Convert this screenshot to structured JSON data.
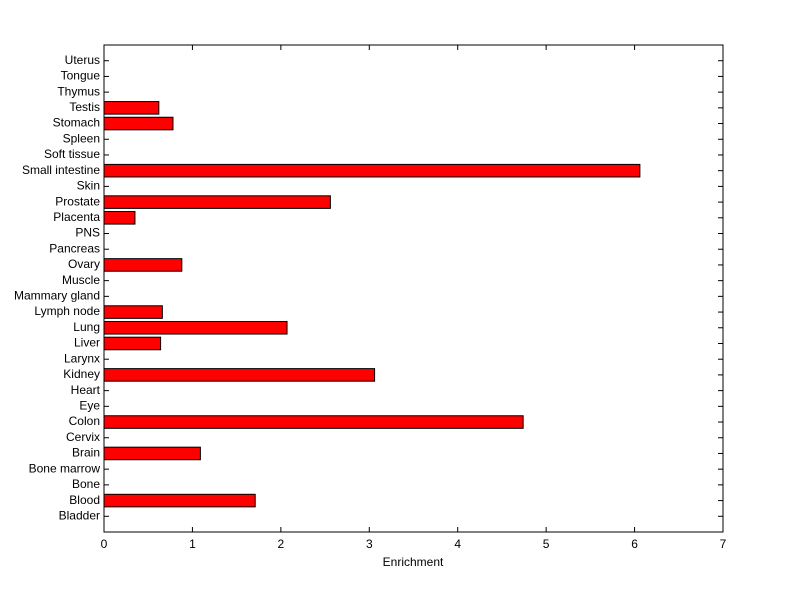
{
  "chart_data": {
    "type": "barh",
    "xlabel": "Enrichment",
    "categories": [
      "Bladder",
      "Blood",
      "Bone",
      "Bone marrow",
      "Brain",
      "Cervix",
      "Colon",
      "Eye",
      "Heart",
      "Kidney",
      "Larynx",
      "Liver",
      "Lung",
      "Lymph node",
      "Mammary gland",
      "Muscle",
      "Ovary",
      "Pancreas",
      "PNS",
      "Placenta",
      "Prostate",
      "Skin",
      "Small intestine",
      "Soft tissue",
      "Spleen",
      "Stomach",
      "Testis",
      "Thymus",
      "Tongue",
      "Uterus"
    ],
    "values": [
      0,
      1.71,
      0,
      0,
      1.09,
      0,
      4.74,
      0,
      0,
      3.06,
      0,
      0.64,
      2.07,
      0.66,
      0,
      0,
      0.88,
      0,
      0,
      0.35,
      2.56,
      0,
      6.06,
      0,
      0,
      0.78,
      0.62,
      0,
      0,
      0
    ],
    "color": "#ff0000",
    "xlim": [
      0,
      7
    ],
    "xticks": [
      0,
      1,
      2,
      3,
      4,
      5,
      6,
      7
    ]
  }
}
